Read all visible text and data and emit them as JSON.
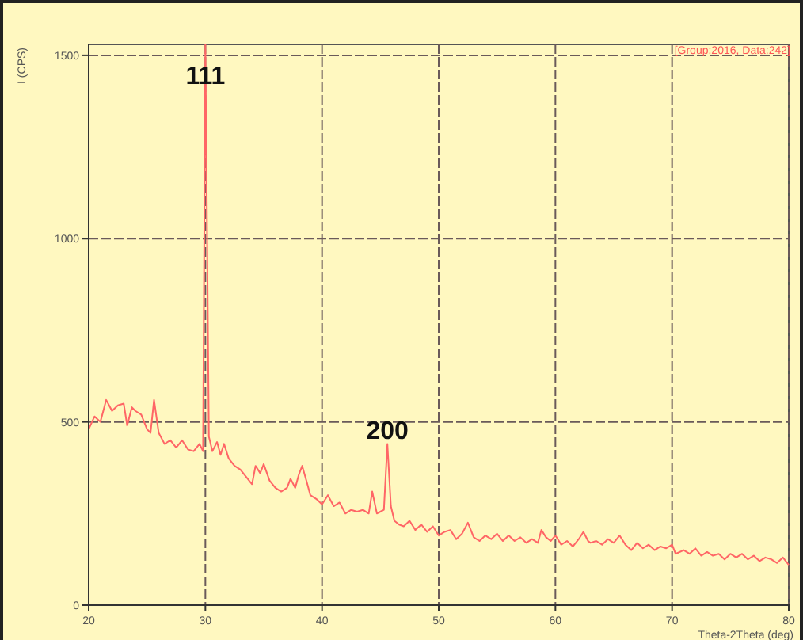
{
  "chart_data": {
    "type": "line",
    "xlabel": "Theta-2Theta (deg)",
    "ylabel": "I (CPS)",
    "annotations": [
      {
        "text": "111",
        "x": 30,
        "y": 1410
      },
      {
        "text": "200",
        "x": 45.6,
        "y": 440
      },
      "[Group:2016, Data:242]"
    ],
    "xlim": [
      20,
      80
    ],
    "ylim": [
      0,
      1530
    ],
    "xticks": [
      20,
      30,
      40,
      50,
      60,
      70,
      80
    ],
    "yticks": [
      0,
      500,
      1000,
      1500
    ],
    "grid": true,
    "series": [
      {
        "color": "#ff6666",
        "x": [
          20,
          20.5,
          21,
          21.5,
          22,
          22.5,
          23,
          23.3,
          23.7,
          24,
          24.5,
          25,
          25.3,
          25.6,
          26,
          26.5,
          27,
          27.5,
          28,
          28.5,
          29,
          29.5,
          29.8,
          30,
          30.3,
          30.6,
          31,
          31.3,
          31.6,
          32,
          32.5,
          33,
          33.5,
          34,
          34.3,
          34.7,
          35,
          35.5,
          36,
          36.5,
          37,
          37.3,
          37.7,
          38,
          38.3,
          38.7,
          39,
          39.5,
          40,
          40.5,
          41,
          41.5,
          42,
          42.5,
          43,
          43.5,
          44,
          44.3,
          44.7,
          45,
          45.3,
          45.6,
          45.9,
          46.2,
          46.6,
          47,
          47.5,
          48,
          48.5,
          49,
          49.5,
          50,
          50.5,
          51,
          51.5,
          52,
          52.5,
          53,
          53.5,
          54,
          54.5,
          55,
          55.5,
          56,
          56.5,
          57,
          57.5,
          58,
          58.5,
          58.8,
          59.2,
          59.6,
          60,
          60.5,
          61,
          61.5,
          62,
          62.4,
          62.8,
          63,
          63.5,
          64,
          64.5,
          65,
          65.5,
          66,
          66.5,
          67,
          67.5,
          68,
          68.5,
          69,
          69.5,
          70,
          70.3,
          71,
          71.5,
          72,
          72.5,
          73,
          73.5,
          74,
          74.5,
          75,
          75.5,
          76,
          76.5,
          77,
          77.5,
          78,
          78.5,
          79,
          79.5,
          80
        ],
        "values": [
          480,
          515,
          500,
          560,
          530,
          545,
          550,
          490,
          540,
          530,
          520,
          480,
          470,
          560,
          470,
          440,
          450,
          430,
          450,
          425,
          420,
          440,
          420,
          1530,
          460,
          420,
          445,
          410,
          440,
          400,
          380,
          370,
          350,
          330,
          380,
          360,
          385,
          340,
          320,
          310,
          320,
          345,
          320,
          355,
          380,
          335,
          300,
          290,
          275,
          300,
          270,
          280,
          250,
          260,
          255,
          260,
          250,
          310,
          250,
          255,
          260,
          440,
          270,
          230,
          220,
          215,
          230,
          205,
          220,
          200,
          215,
          190,
          200,
          205,
          180,
          195,
          225,
          185,
          175,
          190,
          180,
          195,
          175,
          190,
          175,
          185,
          170,
          180,
          170,
          205,
          185,
          175,
          190,
          165,
          175,
          160,
          180,
          200,
          175,
          170,
          175,
          165,
          180,
          170,
          190,
          165,
          150,
          170,
          155,
          165,
          150,
          160,
          155,
          165,
          140,
          150,
          140,
          155,
          135,
          145,
          135,
          140,
          125,
          140,
          130,
          140,
          125,
          135,
          120,
          130,
          125,
          115,
          130,
          110
        ]
      }
    ]
  }
}
